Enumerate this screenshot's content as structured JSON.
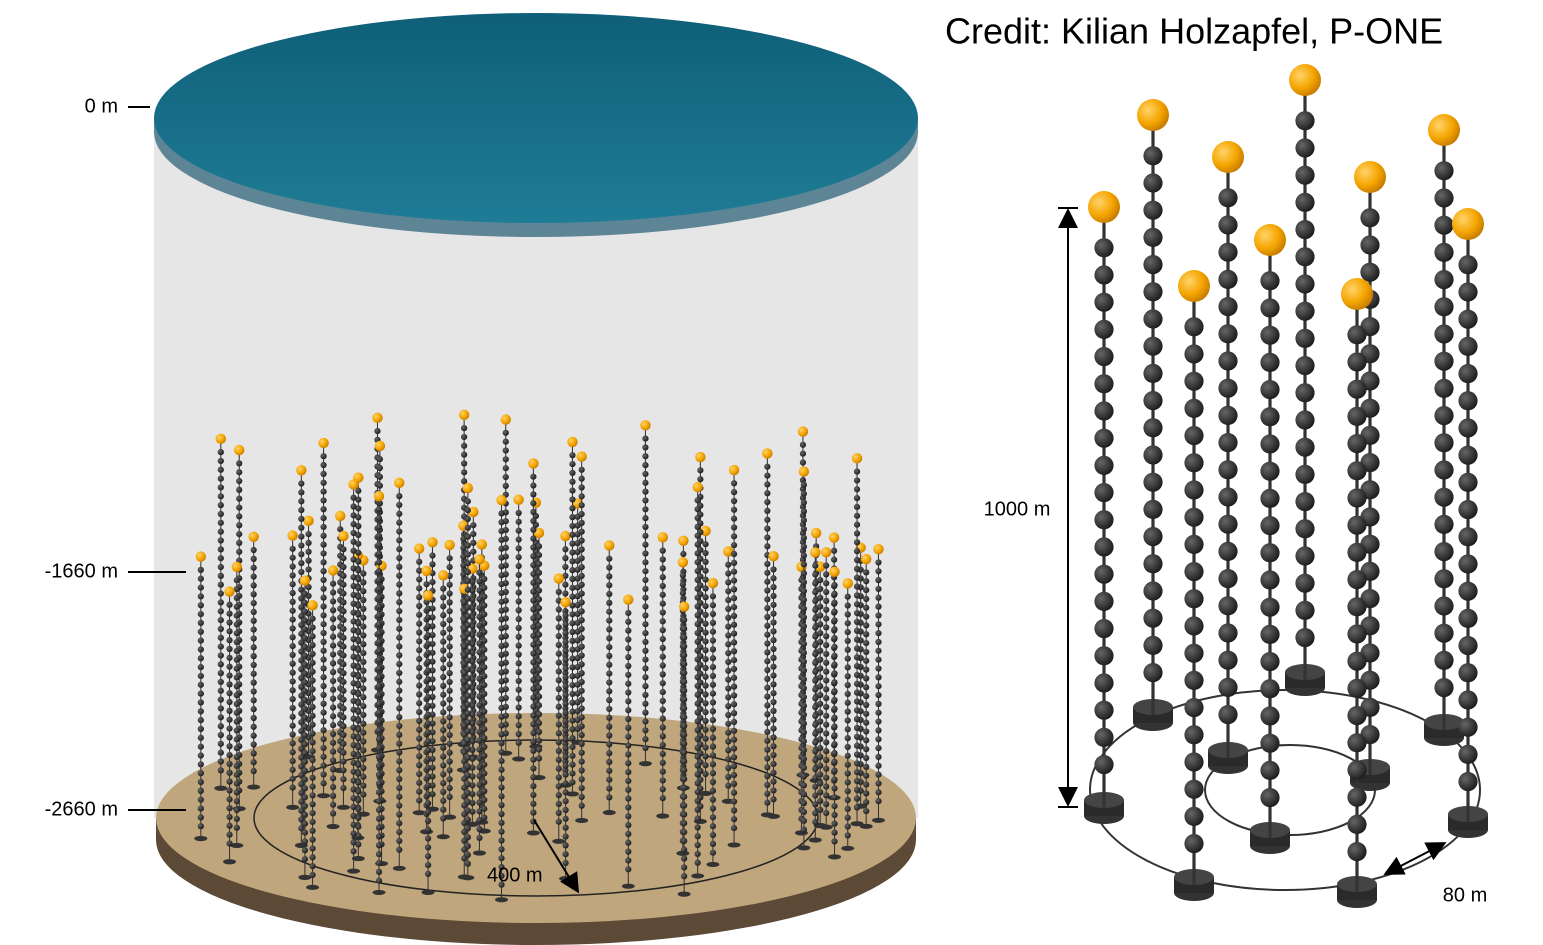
{
  "credit": "Credit: Kilian Holzapfel, P-ONE",
  "depth_labels": [
    "0 m",
    "-1660 m",
    "-2660 m"
  ],
  "radius_label": "400 m",
  "height_label": "1000 m",
  "spacing_label": "80 m"
}
